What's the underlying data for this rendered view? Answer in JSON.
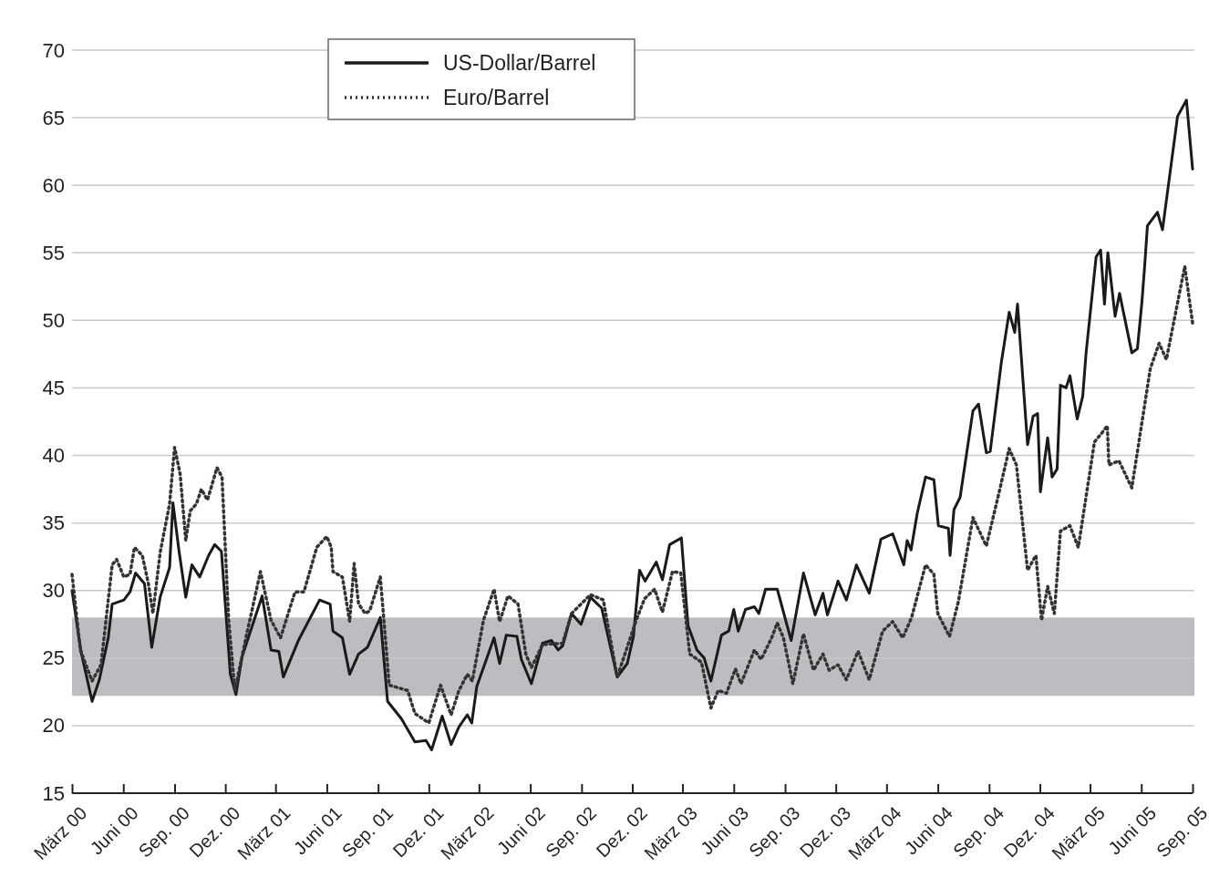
{
  "chart_data": {
    "type": "line",
    "ylim": [
      15,
      70
    ],
    "yticks": [
      15,
      20,
      25,
      30,
      35,
      40,
      45,
      50,
      55,
      60,
      65,
      70
    ],
    "xlim": [
      "2000-03-01",
      "2005-09-01"
    ],
    "xticks": [
      {
        "value": "2000-03-01",
        "label": "März 00"
      },
      {
        "value": "2000-06-01",
        "label": "Juni 00"
      },
      {
        "value": "2000-09-01",
        "label": "Sep. 00"
      },
      {
        "value": "2000-12-01",
        "label": "Dez. 00"
      },
      {
        "value": "2001-03-01",
        "label": "März 01"
      },
      {
        "value": "2001-06-01",
        "label": "Juni 01"
      },
      {
        "value": "2001-09-01",
        "label": "Sep. 01"
      },
      {
        "value": "2001-12-01",
        "label": "Dez. 01"
      },
      {
        "value": "2002-03-01",
        "label": "März 02"
      },
      {
        "value": "2002-06-01",
        "label": "Juni 02"
      },
      {
        "value": "2002-09-01",
        "label": "Sep. 02"
      },
      {
        "value": "2002-12-01",
        "label": "Dez. 02"
      },
      {
        "value": "2003-03-01",
        "label": "März 03"
      },
      {
        "value": "2003-06-01",
        "label": "Juni 03"
      },
      {
        "value": "2003-09-01",
        "label": "Sep. 03"
      },
      {
        "value": "2003-12-01",
        "label": "Dez. 03"
      },
      {
        "value": "2004-03-01",
        "label": "März 04"
      },
      {
        "value": "2004-06-01",
        "label": "Juni 04"
      },
      {
        "value": "2004-09-01",
        "label": "Sep. 04"
      },
      {
        "value": "2004-12-01",
        "label": "Dez. 04"
      },
      {
        "value": "2005-03-01",
        "label": "März 05"
      },
      {
        "value": "2005-06-01",
        "label": "Juni 05"
      },
      {
        "value": "2005-09-01",
        "label": "Sep. 05"
      }
    ],
    "grid": "y",
    "legend": "top left",
    "marker": "none",
    "bands": [
      {
        "axis": "y",
        "from": 22.2,
        "to": 28.0,
        "color": "#bcbdc1"
      }
    ],
    "series": [
      {
        "name": "US-Dollar/Barrel",
        "color": "#1a1a1a",
        "line_style": "solid",
        "x": [
          "2000-03-01",
          "2000-03-17",
          "2000-04-06",
          "2000-04-19",
          "2000-05-05",
          "2000-05-12",
          "2000-06-02",
          "2000-06-13",
          "2000-06-23",
          "2000-07-09",
          "2000-07-22",
          "2000-08-06",
          "2000-08-23",
          "2000-08-29",
          "2000-09-09",
          "2000-09-21",
          "2000-10-02",
          "2000-10-16",
          "2000-11-01",
          "2000-11-12",
          "2000-11-24",
          "2000-12-10",
          "2000-12-20",
          "2000-12-31",
          "2001-02-05",
          "2001-02-21",
          "2001-03-07",
          "2001-03-15",
          "2001-04-11",
          "2001-05-19",
          "2001-06-07",
          "2001-06-12",
          "2001-06-29",
          "2001-07-12",
          "2001-07-28",
          "2001-08-13",
          "2001-09-05",
          "2001-09-18",
          "2001-10-13",
          "2001-11-06",
          "2001-11-26",
          "2001-12-06",
          "2001-12-25",
          "2002-01-10",
          "2002-01-24",
          "2002-02-08",
          "2002-02-16",
          "2002-02-25",
          "2002-03-28",
          "2002-04-07",
          "2002-04-19",
          "2002-05-08",
          "2002-05-16",
          "2002-06-03",
          "2002-06-23",
          "2002-07-09",
          "2002-07-21",
          "2002-07-29",
          "2002-08-14",
          "2002-08-31",
          "2002-09-17",
          "2002-10-07",
          "2002-11-04",
          "2002-11-22",
          "2002-12-03",
          "2002-12-14",
          "2002-12-24",
          "2003-01-13",
          "2003-01-24",
          "2003-02-06",
          "2003-02-27",
          "2003-03-11",
          "2003-03-27",
          "2003-04-09",
          "2003-04-21",
          "2003-05-10",
          "2003-05-23",
          "2003-06-01",
          "2003-06-09",
          "2003-06-22",
          "2003-07-08",
          "2003-07-16",
          "2003-07-28",
          "2003-08-18",
          "2003-09-12",
          "2003-10-04",
          "2003-10-25",
          "2003-11-08",
          "2003-11-16",
          "2003-12-05",
          "2003-12-20",
          "2004-01-07",
          "2004-01-30",
          "2004-02-20",
          "2004-03-12",
          "2004-04-01",
          "2004-04-07",
          "2004-04-14",
          "2004-04-25",
          "2004-05-10",
          "2004-05-25",
          "2004-06-02",
          "2004-06-20",
          "2004-06-23",
          "2004-06-30",
          "2004-07-11",
          "2004-08-03",
          "2004-08-13",
          "2004-08-27",
          "2004-09-03",
          "2004-09-23",
          "2004-10-07",
          "2004-10-17",
          "2004-10-22",
          "2004-11-01",
          "2004-11-09",
          "2004-11-19",
          "2004-11-27",
          "2004-12-02",
          "2004-12-15",
          "2004-12-23",
          "2005-01-01",
          "2005-01-07",
          "2005-01-17",
          "2005-01-24",
          "2005-02-06",
          "2005-02-16",
          "2005-02-22",
          "2005-03-12",
          "2005-03-20",
          "2005-03-27",
          "2005-04-02",
          "2005-04-15",
          "2005-04-23",
          "2005-05-03",
          "2005-05-15",
          "2005-05-25",
          "2005-06-02",
          "2005-06-07",
          "2005-06-12",
          "2005-06-30",
          "2005-07-09",
          "2005-08-05",
          "2005-08-21",
          "2005-09-01"
        ],
        "values": [
          30.0,
          25.5,
          21.8,
          23.4,
          26.5,
          29.0,
          29.3,
          29.9,
          31.3,
          30.5,
          25.8,
          29.5,
          31.7,
          36.5,
          32.9,
          29.5,
          31.9,
          31.0,
          32.6,
          33.4,
          32.9,
          23.8,
          22.3,
          25.1,
          29.6,
          25.6,
          25.5,
          23.6,
          26.3,
          29.3,
          29.0,
          27.0,
          26.5,
          23.8,
          25.3,
          25.8,
          28.0,
          21.8,
          20.5,
          18.8,
          18.9,
          18.2,
          20.7,
          18.6,
          19.9,
          20.8,
          20.2,
          22.9,
          26.5,
          24.6,
          26.7,
          26.6,
          24.9,
          23.1,
          26.1,
          26.3,
          25.6,
          25.9,
          28.3,
          27.5,
          29.5,
          28.7,
          23.6,
          24.6,
          26.6,
          31.5,
          30.7,
          32.1,
          30.8,
          33.4,
          33.9,
          27.4,
          25.6,
          25.0,
          23.3,
          26.7,
          27.0,
          28.6,
          27.0,
          28.6,
          28.8,
          28.3,
          30.1,
          30.1,
          26.3,
          31.3,
          28.2,
          29.8,
          28.2,
          30.7,
          29.3,
          31.9,
          29.8,
          33.8,
          34.2,
          31.9,
          33.7,
          33.0,
          35.7,
          38.4,
          38.2,
          34.8,
          34.6,
          32.6,
          36.0,
          36.9,
          43.3,
          43.8,
          40.2,
          40.3,
          46.9,
          50.6,
          49.1,
          51.2,
          45.4,
          40.8,
          42.9,
          43.1,
          37.3,
          41.3,
          38.4,
          39.0,
          45.2,
          45.0,
          45.9,
          42.7,
          44.4,
          47.6,
          54.7,
          55.2,
          51.2,
          55.0,
          50.3,
          52.0,
          50.0,
          47.6,
          47.9,
          51.3,
          54.0,
          57.0,
          58.0,
          56.7,
          65.1,
          66.3,
          61.2
        ]
      },
      {
        "name": "Euro/Barrel",
        "color": "#333333",
        "line_style": "dotted",
        "x": [
          "2000-03-01",
          "2000-03-16",
          "2000-04-06",
          "2000-04-22",
          "2000-05-12",
          "2000-05-20",
          "2000-06-02",
          "2000-06-13",
          "2000-06-21",
          "2000-07-05",
          "2000-07-16",
          "2000-07-24",
          "2000-08-06",
          "2000-08-23",
          "2000-09-01",
          "2000-09-11",
          "2000-09-21",
          "2000-09-29",
          "2000-10-10",
          "2000-10-19",
          "2000-10-30",
          "2000-11-16",
          "2000-11-25",
          "2000-12-07",
          "2000-12-18",
          "2001-01-08",
          "2001-02-02",
          "2001-02-21",
          "2001-03-10",
          "2001-04-05",
          "2001-04-21",
          "2001-05-14",
          "2001-06-01",
          "2001-06-09",
          "2001-06-12",
          "2001-06-29",
          "2001-07-12",
          "2001-07-20",
          "2001-07-28",
          "2001-08-09",
          "2001-08-17",
          "2001-09-05",
          "2001-09-21",
          "2001-10-24",
          "2001-11-06",
          "2001-12-01",
          "2001-12-22",
          "2002-01-10",
          "2002-01-24",
          "2002-02-08",
          "2002-02-17",
          "2002-03-09",
          "2002-03-28",
          "2002-04-07",
          "2002-04-22",
          "2002-05-10",
          "2002-05-24",
          "2002-06-03",
          "2002-06-23",
          "2002-07-29",
          "2002-08-14",
          "2002-09-17",
          "2002-10-10",
          "2002-11-04",
          "2002-12-08",
          "2002-12-23",
          "2003-01-10",
          "2003-01-24",
          "2003-02-11",
          "2003-02-26",
          "2003-03-14",
          "2003-04-04",
          "2003-04-21",
          "2003-05-04",
          "2003-05-19",
          "2003-06-04",
          "2003-06-14",
          "2003-07-08",
          "2003-07-20",
          "2003-08-08",
          "2003-08-18",
          "2003-08-29",
          "2003-09-15",
          "2003-10-04",
          "2003-10-22",
          "2003-11-08",
          "2003-11-19",
          "2003-12-05",
          "2003-12-20",
          "2004-01-10",
          "2004-01-30",
          "2004-02-23",
          "2004-03-12",
          "2004-03-30",
          "2004-04-15",
          "2004-05-10",
          "2004-05-25",
          "2004-06-01",
          "2004-06-22",
          "2004-07-08",
          "2004-08-03",
          "2004-08-27",
          "2004-09-18",
          "2004-10-07",
          "2004-10-20",
          "2004-11-09",
          "2004-11-24",
          "2004-12-04",
          "2004-12-15",
          "2004-12-27",
          "2005-01-07",
          "2005-01-24",
          "2005-02-08",
          "2005-03-09",
          "2005-03-23",
          "2005-04-01",
          "2005-04-04",
          "2005-04-22",
          "2005-05-15",
          "2005-06-17",
          "2005-07-03",
          "2005-07-16",
          "2005-08-18",
          "2005-09-01"
        ],
        "values": [
          31.2,
          25.6,
          23.3,
          24.5,
          31.9,
          32.3,
          31.0,
          31.2,
          33.2,
          32.6,
          30.5,
          28.3,
          32.8,
          36.4,
          40.6,
          38.6,
          33.7,
          35.9,
          36.4,
          37.5,
          36.7,
          39.1,
          38.4,
          27.8,
          22.6,
          26.7,
          31.4,
          27.8,
          26.5,
          29.9,
          29.9,
          33.2,
          34.0,
          33.2,
          31.4,
          31.0,
          27.7,
          32.0,
          29.0,
          28.3,
          28.5,
          31.0,
          23.0,
          22.6,
          20.9,
          20.2,
          23.0,
          20.8,
          22.6,
          23.8,
          23.3,
          27.8,
          30.1,
          27.7,
          29.6,
          29.0,
          25.3,
          24.3,
          26.0,
          26.1,
          28.3,
          29.7,
          29.3,
          23.6,
          27.8,
          29.4,
          30.1,
          28.4,
          31.4,
          31.3,
          25.3,
          24.7,
          21.3,
          22.6,
          22.4,
          24.2,
          23.1,
          25.6,
          24.9,
          26.5,
          27.6,
          26.5,
          23.1,
          26.8,
          24.1,
          25.3,
          24.1,
          24.5,
          23.4,
          25.5,
          23.4,
          27.0,
          27.7,
          26.5,
          28.0,
          31.9,
          31.2,
          28.3,
          26.6,
          29.2,
          35.4,
          33.3,
          37.1,
          40.5,
          39.3,
          31.5,
          32.6,
          27.8,
          30.3,
          28.3,
          34.4,
          34.8,
          33.2,
          41.0,
          41.7,
          42.2,
          39.3,
          39.6,
          37.6,
          46.4,
          48.3,
          47.1,
          54.0,
          49.8
        ]
      }
    ]
  }
}
